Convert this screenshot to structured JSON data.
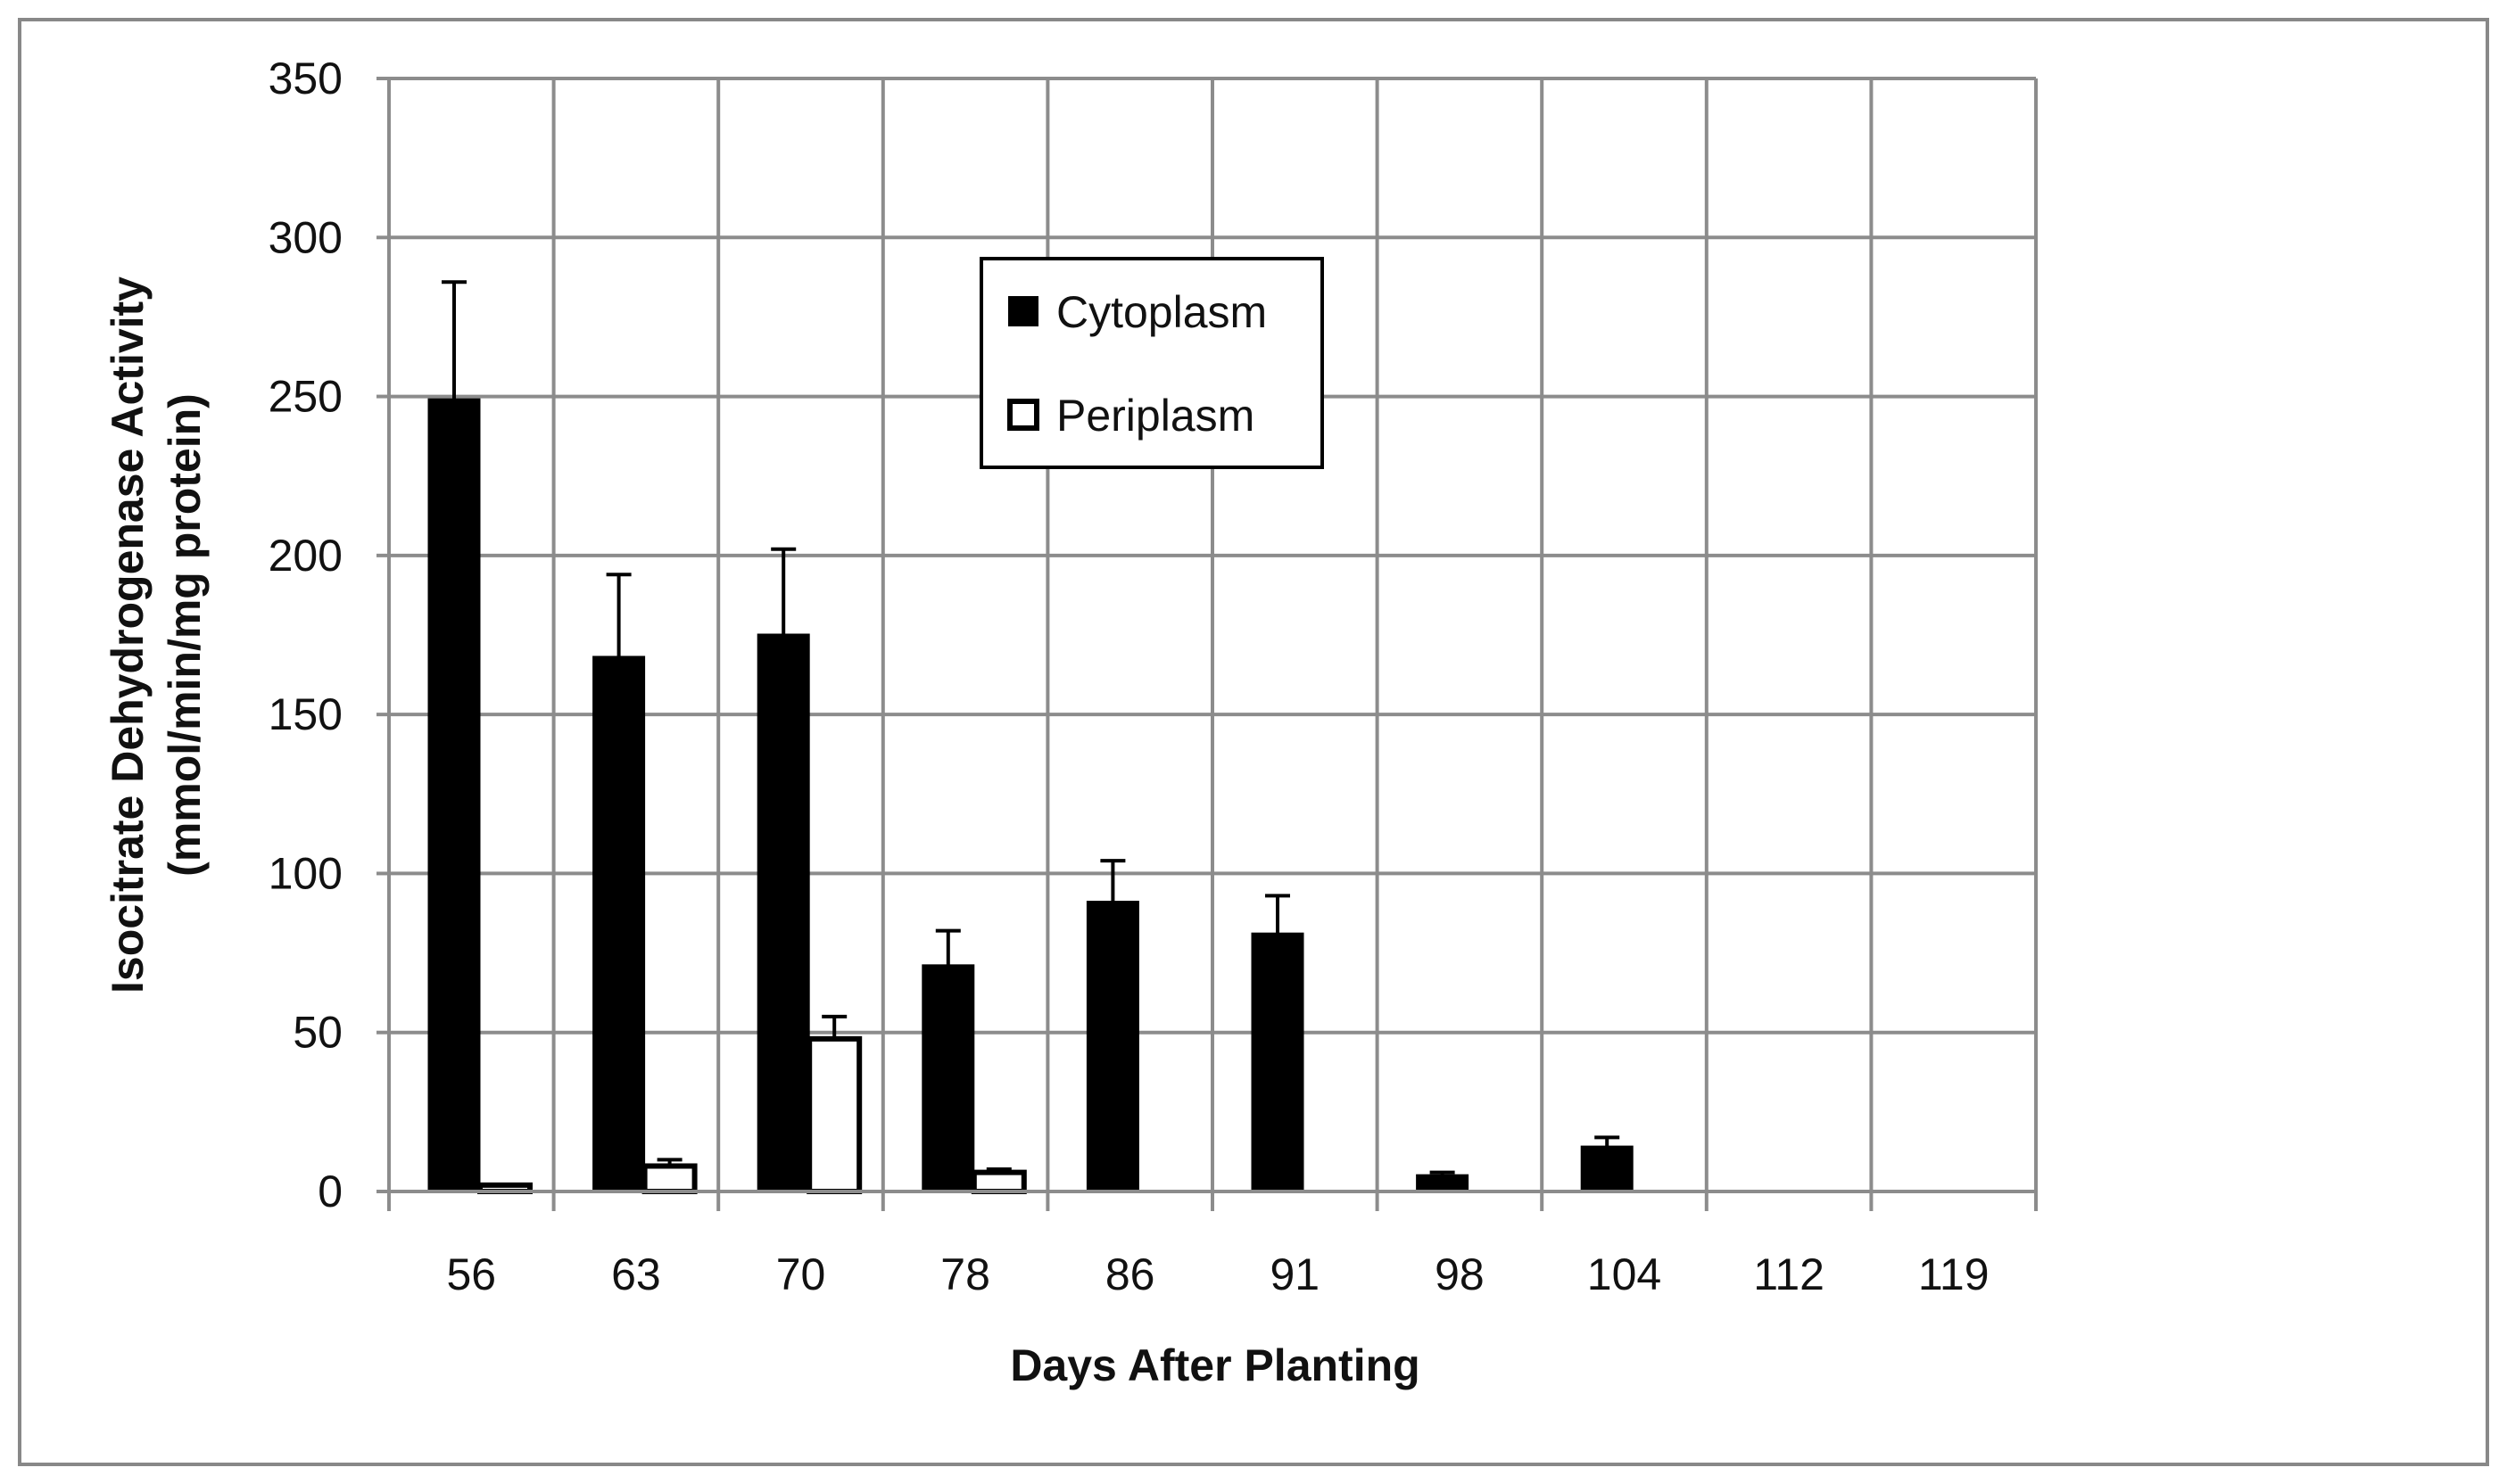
{
  "chart_data": {
    "type": "bar",
    "title": "",
    "xlabel": "Days  After Planting",
    "ylabel_lines": [
      "Isocitrate Dehydrogenase  Activity",
      "(mmol/min/mg protein)"
    ],
    "categories": [
      "56",
      "63",
      "70",
      "78",
      "86",
      "91",
      "98",
      "104",
      "112",
      "119"
    ],
    "ylim": [
      0,
      350
    ],
    "yticks": [
      0,
      50,
      100,
      150,
      200,
      250,
      300,
      350
    ],
    "grid": true,
    "legend_position": "top-center",
    "series": [
      {
        "name": "Cytoplasm",
        "color": "#000000",
        "values": [
          249,
          168,
          175,
          71,
          91,
          81,
          5,
          14,
          0,
          0
        ],
        "error": [
          37,
          26,
          27,
          11,
          13,
          12,
          1,
          3,
          0,
          0
        ]
      },
      {
        "name": "Periplasm",
        "color": "#ffffff",
        "values": [
          2,
          8,
          48,
          6,
          0,
          0,
          0,
          0,
          0,
          0
        ],
        "error": [
          0,
          2,
          7,
          1,
          0,
          0,
          0,
          0,
          0,
          0
        ]
      }
    ]
  }
}
